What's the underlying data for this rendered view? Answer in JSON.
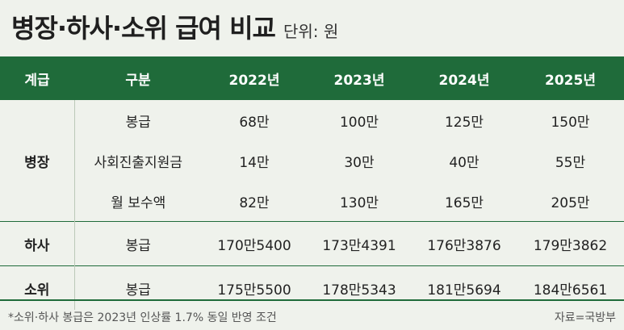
{
  "title": "병장·하사·소위 급여 비교",
  "unit": "단위: 원",
  "headers": [
    "계급",
    "구분",
    "2022년",
    "2023년",
    "2024년",
    "2025년"
  ],
  "groups": [
    {
      "rank": "병장",
      "rows": [
        {
          "category": "봉급",
          "values": [
            "68만",
            "100만",
            "125만",
            "150만"
          ]
        },
        {
          "category": "사회진출지원금",
          "values": [
            "14만",
            "30만",
            "40만",
            "55만"
          ]
        },
        {
          "category": "월 보수액",
          "values": [
            "82만",
            "130만",
            "165만",
            "205만"
          ]
        }
      ]
    },
    {
      "rank": "하사",
      "rows": [
        {
          "category": "봉급",
          "values": [
            "170만5400",
            "173만4391",
            "176만3876",
            "179만3862"
          ]
        }
      ]
    },
    {
      "rank": "소위",
      "rows": [
        {
          "category": "봉급",
          "values": [
            "175만5500",
            "178만5343",
            "181만5694",
            "184만6561"
          ]
        }
      ]
    }
  ],
  "footnote": "*소위·하사 봉급은 2023년 인상률 1.7% 동일 반영 조건",
  "source": "자료=국방부",
  "colors": {
    "header_bg": "#1f6b3a",
    "rank_text": "#1f6b3a",
    "background": "#eff2ec"
  }
}
